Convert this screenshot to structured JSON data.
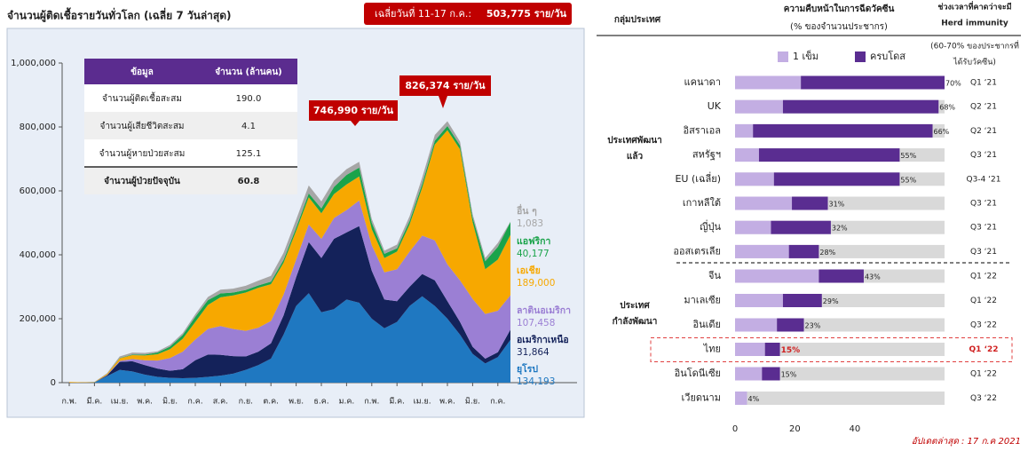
{
  "chart_data": [
    {
      "type": "stacked-area",
      "title": "จำนวนผู้ติดเชื้อรายวันทั่วโลก (เฉลี่ย 7 วันล่าสุด)",
      "banner": {
        "label": "เฉลี่ยวันที่ 11-17 ก.ค.:",
        "value": "503,775 ราย/วัน"
      },
      "annotations": [
        {
          "text": "746,990 ราย/วัน"
        },
        {
          "text": "826,374 ราย/วัน"
        }
      ],
      "table": {
        "header": [
          "ข้อมูล",
          "จำนวน (ล้านคน)"
        ],
        "rows": [
          [
            "จำนวนผู้ติดเชื้อสะสม",
            "190.0"
          ],
          [
            "จำนวนผู้เสียชีวิตสะสม",
            "4.1"
          ],
          [
            "จำนวนผู้หายป่วยสะสม",
            "125.1"
          ],
          [
            "จำนวนผู้ป่วยปัจจุบัน",
            "60.8"
          ]
        ]
      },
      "categories": [
        "ก.พ.",
        null,
        "มี.ค.",
        null,
        "เม.ย.",
        null,
        "พ.ค.",
        null,
        "มิ.ย.",
        null,
        "ก.ค.",
        null,
        "ส.ค.",
        null,
        "ก.ย.",
        null,
        "ต.ค.",
        null,
        "พ.ย.",
        null,
        "ธ.ค.",
        null,
        "ม.ค.",
        null,
        "ก.พ.",
        null,
        "มี.ค.",
        null,
        "เม.ย.",
        null,
        "พ.ค.",
        null,
        "มิ.ย.",
        null,
        "ก.ค.",
        null
      ],
      "series": [
        {
          "name": "ยุโรป",
          "color": "#1f78c1",
          "last_label": "134,193",
          "values": [
            0,
            0,
            1000,
            20000,
            40000,
            35000,
            25000,
            18000,
            15000,
            14000,
            15000,
            18000,
            22000,
            28000,
            40000,
            55000,
            75000,
            150000,
            240000,
            280000,
            220000,
            230000,
            260000,
            250000,
            200000,
            170000,
            190000,
            240000,
            270000,
            240000,
            200000,
            150000,
            90000,
            60000,
            80000,
            134193
          ]
        },
        {
          "name": "อเมริกาเหนือ",
          "color": "#14225a",
          "last_label": "31,864",
          "values": [
            0,
            0,
            0,
            3000,
            25000,
            32000,
            30000,
            26000,
            22000,
            28000,
            55000,
            70000,
            65000,
            55000,
            42000,
            42000,
            48000,
            60000,
            90000,
            160000,
            170000,
            220000,
            210000,
            240000,
            150000,
            90000,
            65000,
            60000,
            70000,
            80000,
            55000,
            40000,
            22000,
            15000,
            15000,
            31864
          ]
        },
        {
          "name": "ลาตินอเมริกา",
          "color": "#9b7fd4",
          "last_label": "107,458",
          "values": [
            0,
            0,
            0,
            1000,
            3000,
            7000,
            15000,
            25000,
            40000,
            55000,
            65000,
            80000,
            90000,
            85000,
            80000,
            75000,
            70000,
            65000,
            55000,
            55000,
            60000,
            65000,
            70000,
            80000,
            80000,
            85000,
            100000,
            110000,
            120000,
            125000,
            115000,
            130000,
            150000,
            140000,
            130000,
            107458
          ]
        },
        {
          "name": "เอเชีย",
          "color": "#f7a800",
          "last_label": "189,000",
          "values": [
            2000,
            1000,
            1000,
            3000,
            8000,
            12000,
            15000,
            20000,
            28000,
            40000,
            55000,
            75000,
            90000,
            105000,
            120000,
            125000,
            115000,
            100000,
            90000,
            85000,
            80000,
            75000,
            80000,
            75000,
            50000,
            45000,
            55000,
            85000,
            150000,
            300000,
            420000,
            410000,
            240000,
            140000,
            160000,
            189000
          ]
        },
        {
          "name": "แอฟริกา",
          "color": "#1aa34a",
          "last_label": "40,177",
          "values": [
            0,
            0,
            0,
            500,
            1000,
            2000,
            3000,
            5000,
            8000,
            12000,
            16000,
            15000,
            12000,
            9000,
            8000,
            7000,
            8000,
            9000,
            10000,
            12000,
            15000,
            22000,
            30000,
            28000,
            20000,
            13000,
            10000,
            11000,
            12000,
            12000,
            13000,
            12000,
            15000,
            25000,
            40000,
            40177
          ]
        },
        {
          "name": "อื่น ๆ",
          "color": "#a6a6a6",
          "last_label": "1,083",
          "values": [
            0,
            0,
            0,
            2000,
            5000,
            6000,
            5000,
            4000,
            5000,
            6000,
            8000,
            10000,
            12000,
            12000,
            13000,
            15000,
            18000,
            22000,
            25000,
            25000,
            22000,
            20000,
            18000,
            18000,
            12000,
            10000,
            12000,
            15000,
            20000,
            18000,
            15000,
            12000,
            10000,
            10000,
            12000,
            1083
          ]
        }
      ],
      "ylim": [
        0,
        1000000
      ],
      "yticks": [
        0,
        {
          "value": 200000,
          "label": "200,000"
        },
        {
          "value": 400000,
          "label": "400,000"
        },
        {
          "value": 600000,
          "label": "600,000"
        },
        {
          "value": 800000,
          "label": "800,000"
        },
        {
          "value": 1000000,
          "label": "1,000,000"
        }
      ]
    },
    {
      "type": "stacked-hbar",
      "headers": {
        "group": "กลุ่มประเทศ",
        "title": "ความคืบหน้าในการฉีดวัคซีน",
        "subtitle": "(% ของจำนวนประชากร)",
        "timing": [
          "ช่วงเวลาที่คาดว่าจะมี",
          "Herd immunity",
          "(60-70% ของประชากรที่",
          "ได้รับวัคซีน)"
        ]
      },
      "groups": [
        {
          "lines": [
            "ประเทศพัฒนา",
            "แล้ว"
          ]
        },
        {
          "lines": [
            "ประเทศ",
            "กำลังพัฒนา"
          ]
        }
      ],
      "categories": [
        "แคนาดา",
        "UK",
        "อิสราเอล",
        "สหรัฐฯ",
        "EU (เฉลี่ย)",
        "เกาหลีใต้",
        "ญี่ปุ่น",
        "ออสเตรเลีย",
        "จีน",
        "มาเลเซีย",
        "อินเดีย",
        "ไทย",
        "อินโดนีเซีย",
        "เวียดนาม"
      ],
      "series": [
        {
          "name": "1 เข็ม",
          "color": "#c3aee3",
          "values": [
            22,
            16,
            6,
            8,
            13,
            19,
            12,
            18,
            28,
            16,
            14,
            10,
            9,
            4
          ]
        },
        {
          "name": "ครบโดส",
          "color": "#5a2d91",
          "values": [
            48,
            52,
            60,
            47,
            42,
            12,
            20,
            10,
            15,
            13,
            9,
            5,
            6,
            0
          ]
        }
      ],
      "totals": {
        "values": [
          70,
          68,
          66,
          55,
          55,
          31,
          32,
          28,
          43,
          29,
          23,
          15,
          15,
          4
        ],
        "value_labels": [
          "70%",
          "68%",
          "66%",
          "55%",
          "55%",
          "31%",
          "32%",
          "28%",
          "43%",
          "29%",
          "23%",
          "15%",
          "15%",
          "4%"
        ]
      },
      "timing": [
        "Q1 ‘21",
        "Q2 ‘21",
        "Q2 ‘21",
        "Q3 ‘21",
        "Q3-4 ‘21",
        "Q3 ‘21",
        "Q3 ‘21",
        "Q3 ‘21",
        "Q1 ‘22",
        "Q1 ‘22",
        "Q3 ‘22",
        "Q1 ‘22",
        "Q1 ‘22",
        "Q3 ‘22"
      ],
      "highlight": "ไทย",
      "xlim": [
        0,
        70
      ],
      "xticks": [
        0,
        20,
        40
      ],
      "footnote": "อัปเดตล่าสุด : 17 ก.ค 2021"
    }
  ]
}
